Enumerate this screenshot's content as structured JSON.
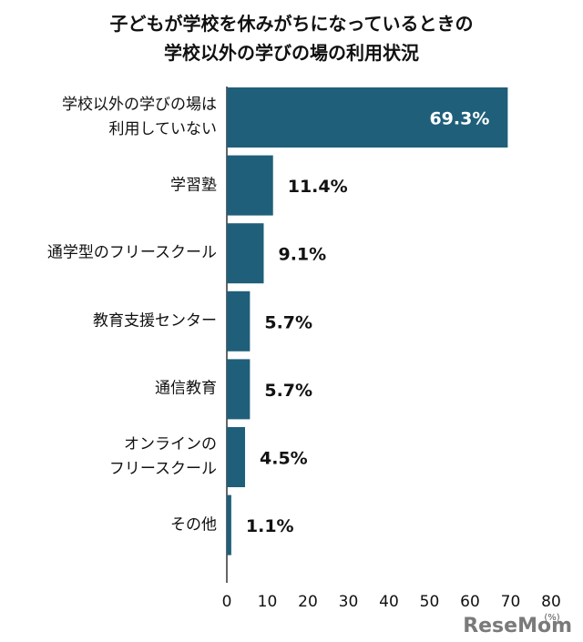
{
  "chart_data": {
    "type": "bar",
    "orientation": "horizontal",
    "title": "子どもが学校を休みがちになっているときの\n学校以外の学びの場の利用状況",
    "categories": [
      "学校以外の学びの場は\n利用していない",
      "学習塾",
      "通学型のフリースクール",
      "教育支援センター",
      "通信教育",
      "オンラインの\nフリースクール",
      "その他"
    ],
    "values": [
      69.3,
      11.4,
      9.1,
      5.7,
      5.7,
      4.5,
      1.1
    ],
    "value_labels": [
      "69.3%",
      "11.4%",
      "9.1%",
      "5.7%",
      "5.7%",
      "4.5%",
      "1.1%"
    ],
    "color": "#1f5f7a",
    "xlim": [
      0,
      80
    ],
    "xticks": [
      0,
      10,
      20,
      30,
      40,
      50,
      60,
      70,
      80
    ],
    "x_unit": "(%)",
    "grid": false,
    "watermark": "ReseMom"
  }
}
